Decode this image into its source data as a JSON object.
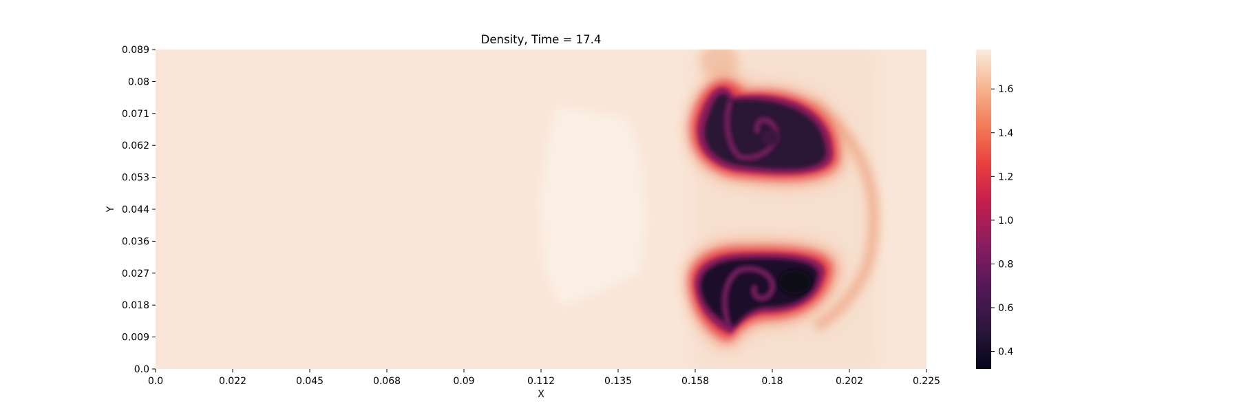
{
  "chart_data": {
    "type": "heatmap",
    "title": "Density, Time = 17.4",
    "xlabel": "X",
    "ylabel": "Y",
    "xlim": [
      0.0,
      0.225
    ],
    "ylim": [
      0.0,
      0.089
    ],
    "x_ticks": [
      "0.0",
      "0.022",
      "0.045",
      "0.068",
      "0.09",
      "0.112",
      "0.135",
      "0.158",
      "0.18",
      "0.202",
      "0.225"
    ],
    "y_ticks": [
      "0.0",
      "0.009",
      "0.018",
      "0.027",
      "0.036",
      "0.044",
      "0.053",
      "0.062",
      "0.071",
      "0.08",
      "0.089"
    ],
    "colorbar": {
      "range": [
        0.32,
        1.78
      ],
      "ticks": [
        "0.4",
        "0.6",
        "0.8",
        "1.0",
        "1.2",
        "1.4",
        "1.6"
      ],
      "tick_values": [
        0.4,
        0.6,
        0.8,
        1.0,
        1.2,
        1.4,
        1.6
      ],
      "colormap": "rocket"
    },
    "field": {
      "background_density": 1.72,
      "light_patch": {
        "x_range": [
          0.112,
          0.142
        ],
        "y_range": [
          0.017,
          0.073
        ],
        "density": 1.77
      },
      "vortex_pair": [
        {
          "name": "upper vortex",
          "center_x": 0.181,
          "center_y": 0.064,
          "min_density": 0.35
        },
        {
          "name": "lower vortex",
          "center_x": 0.18,
          "center_y": 0.023,
          "min_density": 0.33
        }
      ],
      "front_arc": {
        "x_at_center": 0.206,
        "y_center": 0.044,
        "density": 1.5
      }
    }
  }
}
